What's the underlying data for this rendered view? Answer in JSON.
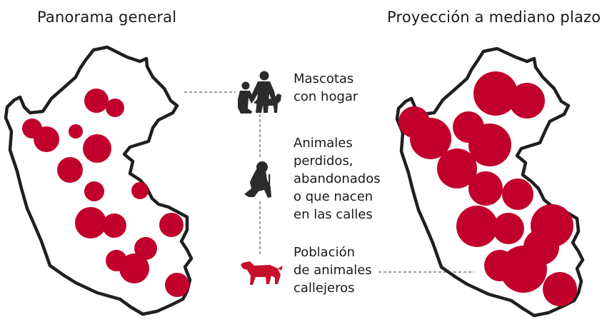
{
  "titles": {
    "left": "Panorama general",
    "right": "Proyección a mediano plazo"
  },
  "legend": [
    {
      "id": "pets",
      "icon": "person-with-dog-icon",
      "label": "Mascotas\ncon hogar"
    },
    {
      "id": "lost",
      "icon": "sitting-dog-icon",
      "label": "Animales\nperdidos,\nabandonados\no que nacen\nen las calles"
    },
    {
      "id": "stray",
      "icon": "stray-dog-icon",
      "label": "Población\nde animales\ncallejeros"
    }
  ],
  "colors": {
    "circle": "#c1002b",
    "outline": "#1f1f1f",
    "stray_icon": "#c8102e",
    "icon_dark": "#2b2b2b"
  }
}
